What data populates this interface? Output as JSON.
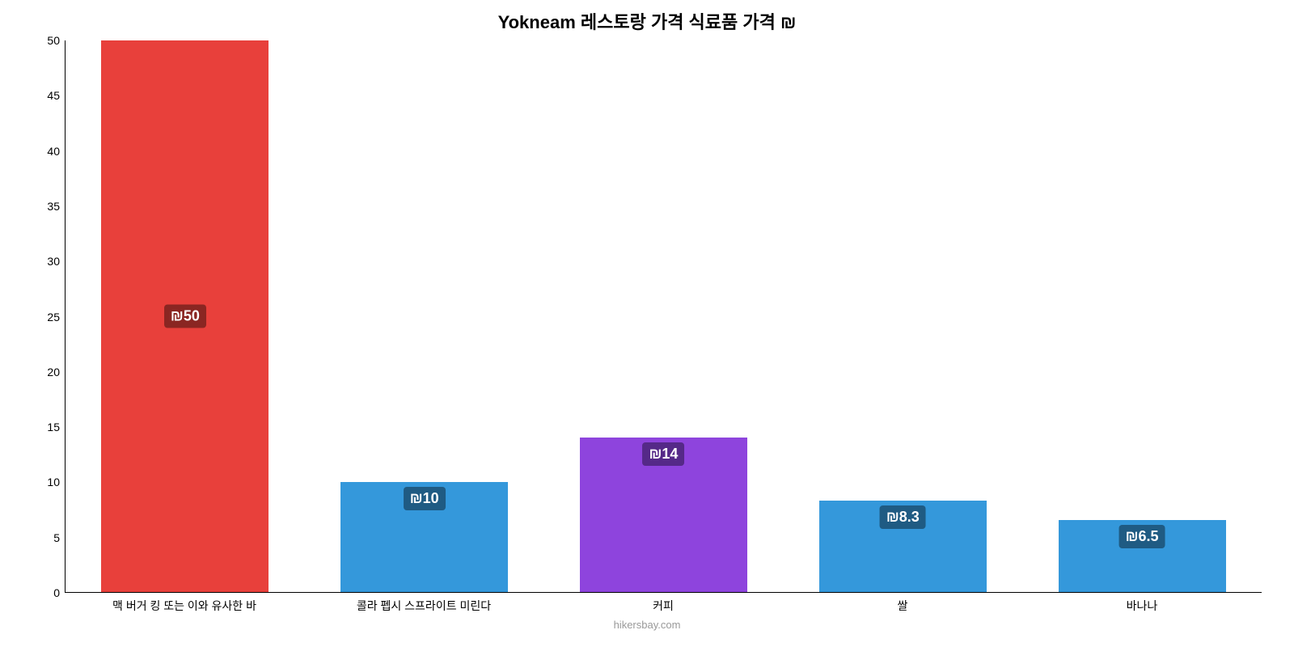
{
  "chart": {
    "type": "bar",
    "title": "Yokneam 레스토랑 가격 식료품 가격 ₪",
    "title_fontsize": 22,
    "title_color": "#000000",
    "background_color": "#ffffff",
    "axis_color": "#000000",
    "ylim": [
      0,
      50
    ],
    "ytick_step": 5,
    "ytick_fontsize": 14,
    "xtick_fontsize": 14,
    "bar_width_pct": 70,
    "label_fontsize": 18,
    "label_text_color": "#ffffff",
    "label_border_radius": 4,
    "footer": "hikersbay.com",
    "footer_color": "#999999",
    "footer_fontsize": 13,
    "categories": [
      "맥 버거 킹 또는 이와 유사한 바",
      "콜라 펩시 스프라이트 미린다",
      "커피",
      "쌀",
      "바나나"
    ],
    "values": [
      50,
      10,
      14,
      8.3,
      6.5
    ],
    "value_labels": [
      "₪50",
      "₪10",
      "₪14",
      "₪8.3",
      "₪6.5"
    ],
    "bar_colors": [
      "#e8403b",
      "#3498db",
      "#8e44dd",
      "#3498db",
      "#3498db"
    ],
    "label_bg_colors": [
      "#8a2622",
      "#1f5b83",
      "#552988",
      "#1f5b83",
      "#1f5b83"
    ],
    "label_middle_of_bar": [
      true,
      false,
      false,
      false,
      false
    ]
  }
}
